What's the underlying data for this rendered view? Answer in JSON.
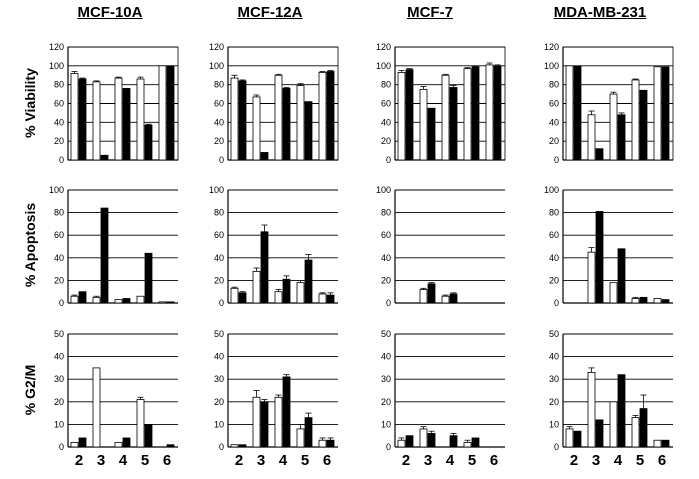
{
  "columns": [
    "MCF-10A",
    "MCF-12A",
    "MCF-7",
    "MDA-MB-231"
  ],
  "rows": [
    "% Viability",
    "% Apoptosis",
    "% G2/M"
  ],
  "x_tick_labels": [
    "2",
    "3",
    "4",
    "5",
    "6"
  ],
  "colors": {
    "open_bar": "#ffffff",
    "filled_bar": "#000000",
    "grid": "#000000"
  },
  "chart_data": [
    {
      "type": "bar",
      "cell_line": "MCF-10A",
      "ylabel": "% Viability",
      "ylim": [
        0,
        120
      ],
      "yticks": [
        0,
        20,
        40,
        60,
        80,
        100,
        120
      ],
      "categories": [
        "2",
        "3",
        "4",
        "5",
        "6"
      ],
      "series": [
        {
          "values": [
            92,
            83,
            87,
            86,
            100
          ],
          "err": [
            2,
            1,
            1,
            2,
            0
          ]
        },
        {
          "values": [
            86,
            5,
            76,
            37,
            100
          ],
          "err": [
            1,
            0,
            0,
            1,
            0
          ]
        }
      ]
    },
    {
      "type": "bar",
      "cell_line": "MCF-12A",
      "ylabel": "% Viability",
      "ylim": [
        0,
        120
      ],
      "yticks": [
        0,
        20,
        40,
        60,
        80,
        100,
        120
      ],
      "categories": [
        "2",
        "3",
        "4",
        "5",
        "6"
      ],
      "series": [
        {
          "values": [
            87,
            67,
            90,
            79,
            93
          ],
          "err": [
            3,
            2,
            1,
            2,
            1
          ]
        },
        {
          "values": [
            84,
            8,
            76,
            62,
            94
          ],
          "err": [
            1,
            0,
            1,
            0,
            1
          ]
        }
      ]
    },
    {
      "type": "bar",
      "cell_line": "MCF-7",
      "ylabel": "% Viability",
      "ylim": [
        0,
        120
      ],
      "yticks": [
        0,
        20,
        40,
        60,
        80,
        100,
        120
      ],
      "categories": [
        "2",
        "3",
        "4",
        "5",
        "6"
      ],
      "series": [
        {
          "values": [
            93,
            75,
            90,
            97,
            101
          ],
          "err": [
            2,
            3,
            1,
            1,
            2
          ]
        },
        {
          "values": [
            96,
            55,
            77,
            99,
            100
          ],
          "err": [
            1,
            0,
            2,
            1,
            1
          ]
        }
      ]
    },
    {
      "type": "bar",
      "cell_line": "MDA-MB-231",
      "ylabel": "% Viability",
      "ylim": [
        0,
        120
      ],
      "yticks": [
        0,
        20,
        40,
        60,
        80,
        100,
        120
      ],
      "categories": [
        "2",
        "3",
        "4",
        "5",
        "6"
      ],
      "series": [
        {
          "values": [
            100,
            48,
            70,
            85,
            99
          ],
          "err": [
            0,
            4,
            2,
            1,
            0
          ]
        },
        {
          "values": [
            100,
            12,
            48,
            74,
            99
          ],
          "err": [
            0,
            0,
            2,
            0,
            0
          ]
        }
      ]
    },
    {
      "type": "bar",
      "cell_line": "MCF-10A",
      "ylabel": "% Apoptosis",
      "ylim": [
        0,
        100
      ],
      "yticks": [
        0,
        20,
        40,
        60,
        80,
        100
      ],
      "categories": [
        "2",
        "3",
        "4",
        "5",
        "6"
      ],
      "series": [
        {
          "values": [
            6,
            5,
            3,
            6,
            1
          ],
          "err": [
            1,
            1,
            0,
            0,
            0
          ]
        },
        {
          "values": [
            10,
            84,
            4,
            44,
            1
          ],
          "err": [
            0,
            0,
            0,
            0,
            0
          ]
        }
      ]
    },
    {
      "type": "bar",
      "cell_line": "MCF-12A",
      "ylabel": "% Apoptosis",
      "ylim": [
        0,
        100
      ],
      "yticks": [
        0,
        20,
        40,
        60,
        80,
        100
      ],
      "categories": [
        "2",
        "3",
        "4",
        "5",
        "6"
      ],
      "series": [
        {
          "values": [
            13,
            28,
            10,
            18,
            8
          ],
          "err": [
            1,
            3,
            2,
            2,
            1
          ]
        },
        {
          "values": [
            9,
            63,
            21,
            38,
            7
          ],
          "err": [
            1,
            6,
            3,
            5,
            2
          ]
        }
      ]
    },
    {
      "type": "bar",
      "cell_line": "MCF-7",
      "ylabel": "% Apoptosis",
      "ylim": [
        0,
        100
      ],
      "yticks": [
        0,
        20,
        40,
        60,
        80,
        100
      ],
      "categories": [
        "2",
        "3",
        "4",
        "5",
        "6"
      ],
      "series": [
        {
          "values": [
            0,
            12,
            6,
            0,
            0
          ],
          "err": [
            0,
            1,
            1,
            0,
            0
          ]
        },
        {
          "values": [
            0,
            17,
            8,
            0,
            0
          ],
          "err": [
            0,
            1,
            1,
            0,
            0
          ]
        }
      ]
    },
    {
      "type": "bar",
      "cell_line": "MDA-MB-231",
      "ylabel": "% Apoptosis",
      "ylim": [
        0,
        100
      ],
      "yticks": [
        0,
        20,
        40,
        60,
        80,
        100
      ],
      "categories": [
        "2",
        "3",
        "4",
        "5",
        "6"
      ],
      "series": [
        {
          "values": [
            0,
            45,
            18,
            4,
            4
          ],
          "err": [
            0,
            4,
            0,
            1,
            0
          ]
        },
        {
          "values": [
            0,
            81,
            48,
            5,
            3
          ],
          "err": [
            0,
            0,
            0,
            0,
            0
          ]
        }
      ]
    },
    {
      "type": "bar",
      "cell_line": "MCF-10A",
      "ylabel": "% G2/M",
      "ylim": [
        0,
        50
      ],
      "yticks": [
        0,
        10,
        20,
        30,
        40,
        50
      ],
      "categories": [
        "2",
        "3",
        "4",
        "5",
        "6"
      ],
      "series": [
        {
          "values": [
            2,
            35,
            2,
            21,
            0
          ],
          "err": [
            0,
            0,
            0,
            1,
            0
          ]
        },
        {
          "values": [
            4,
            0,
            4,
            10,
            1
          ],
          "err": [
            0,
            0,
            0,
            0,
            0
          ]
        }
      ]
    },
    {
      "type": "bar",
      "cell_line": "MCF-12A",
      "ylabel": "% G2/M",
      "ylim": [
        0,
        50
      ],
      "yticks": [
        0,
        10,
        20,
        30,
        40,
        50
      ],
      "categories": [
        "2",
        "3",
        "4",
        "5",
        "6"
      ],
      "series": [
        {
          "values": [
            1,
            22,
            22,
            8,
            3
          ],
          "err": [
            0,
            3,
            1,
            2,
            1
          ]
        },
        {
          "values": [
            1,
            20,
            31,
            13,
            3
          ],
          "err": [
            0,
            1,
            1,
            2,
            1
          ]
        }
      ]
    },
    {
      "type": "bar",
      "cell_line": "MCF-7",
      "ylabel": "% G2/M",
      "ylim": [
        0,
        50
      ],
      "yticks": [
        0,
        10,
        20,
        30,
        40,
        50
      ],
      "categories": [
        "2",
        "3",
        "4",
        "5",
        "6"
      ],
      "series": [
        {
          "values": [
            3,
            8,
            0,
            2,
            0
          ],
          "err": [
            1,
            1,
            0,
            1,
            0
          ]
        },
        {
          "values": [
            5,
            6,
            5,
            4,
            0
          ],
          "err": [
            0,
            1,
            1,
            0,
            0
          ]
        }
      ]
    },
    {
      "type": "bar",
      "cell_line": "MDA-MB-231",
      "ylabel": "% G2/M",
      "ylim": [
        0,
        50
      ],
      "yticks": [
        0,
        10,
        20,
        30,
        40,
        50
      ],
      "categories": [
        "2",
        "3",
        "4",
        "5",
        "6"
      ],
      "series": [
        {
          "values": [
            8,
            33,
            20,
            13,
            3
          ],
          "err": [
            1,
            2,
            0,
            1,
            0
          ]
        },
        {
          "values": [
            7,
            12,
            32,
            17,
            3
          ],
          "err": [
            0,
            0,
            0,
            6,
            0
          ]
        }
      ]
    }
  ]
}
